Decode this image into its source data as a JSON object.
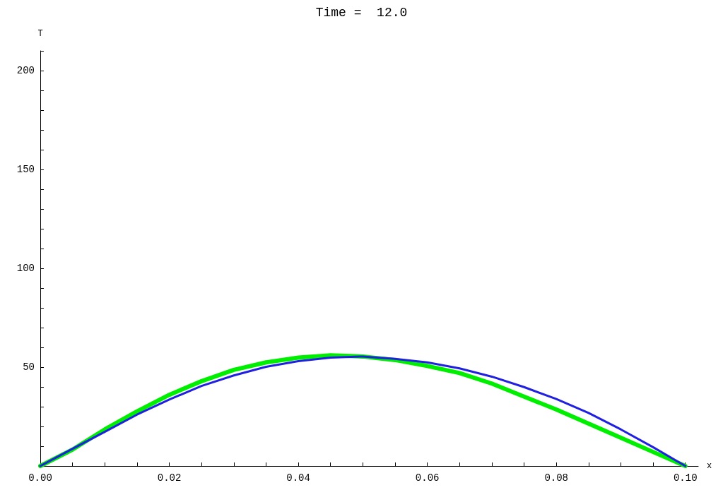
{
  "chart_data": {
    "type": "line",
    "title": "Time =  12.0",
    "xlabel": "x",
    "ylabel": "T",
    "x": [
      0,
      0.005,
      0.01,
      0.015,
      0.02,
      0.025,
      0.03,
      0.035,
      0.04,
      0.045,
      0.05,
      0.055,
      0.06,
      0.065,
      0.07,
      0.075,
      0.08,
      0.085,
      0.09,
      0.095,
      0.1
    ],
    "series": [
      {
        "color": "#00ee00",
        "values": [
          0,
          8.3,
          18.5,
          27.6,
          36,
          42.9,
          48.6,
          52.4,
          54.8,
          56,
          55.4,
          53.6,
          50.6,
          47,
          41.7,
          35.1,
          28.6,
          21.4,
          14.3,
          7.1,
          0
        ]
      },
      {
        "color": "#2020e0",
        "values": [
          0,
          8.7,
          17.3,
          26,
          33.6,
          40.5,
          45.8,
          50.2,
          53,
          54.8,
          55.4,
          54.2,
          52.4,
          49.4,
          45.2,
          39.9,
          33.9,
          26.8,
          18.5,
          9.5,
          0
        ]
      }
    ],
    "xlim": [
      0,
      0.102
    ],
    "ylim": [
      0,
      210
    ],
    "xticks": [
      {
        "value": 0,
        "label": "0.00"
      },
      {
        "value": 0.005,
        "label": null
      },
      {
        "value": 0.01,
        "label": null
      },
      {
        "value": 0.015,
        "label": null
      },
      {
        "value": 0.02,
        "label": "0.02"
      },
      {
        "value": 0.025,
        "label": null
      },
      {
        "value": 0.03,
        "label": null
      },
      {
        "value": 0.035,
        "label": null
      },
      {
        "value": 0.04,
        "label": "0.04"
      },
      {
        "value": 0.045,
        "label": null
      },
      {
        "value": 0.05,
        "label": null
      },
      {
        "value": 0.055,
        "label": null
      },
      {
        "value": 0.06,
        "label": "0.06"
      },
      {
        "value": 0.065,
        "label": null
      },
      {
        "value": 0.07,
        "label": null
      },
      {
        "value": 0.075,
        "label": null
      },
      {
        "value": 0.08,
        "label": "0.08"
      },
      {
        "value": 0.085,
        "label": null
      },
      {
        "value": 0.09,
        "label": null
      },
      {
        "value": 0.095,
        "label": null
      },
      {
        "value": 0.1,
        "label": "0.10"
      }
    ],
    "yticks": [
      {
        "value": 10,
        "label": null
      },
      {
        "value": 20,
        "label": null
      },
      {
        "value": 30,
        "label": null
      },
      {
        "value": 40,
        "label": null
      },
      50,
      {
        "value": 60,
        "label": null
      },
      {
        "value": 70,
        "label": null
      },
      {
        "value": 80,
        "label": null
      },
      {
        "value": 90,
        "label": null
      },
      100,
      {
        "value": 110,
        "label": null
      },
      {
        "value": 120,
        "label": null
      },
      {
        "value": 130,
        "label": null
      },
      {
        "value": 140,
        "label": null
      },
      150,
      {
        "value": 160,
        "label": null
      },
      {
        "value": 170,
        "label": null
      },
      {
        "value": 180,
        "label": null
      },
      {
        "value": 190,
        "label": null
      },
      200,
      {
        "value": 210,
        "label": null
      }
    ],
    "grid": false,
    "marker": "none",
    "line_style": "solid"
  }
}
